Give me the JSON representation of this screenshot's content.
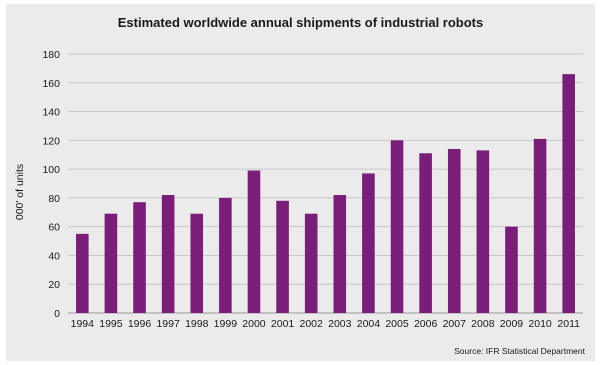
{
  "chart_data": {
    "type": "bar",
    "title": "Estimated worldwide annual shipments of industrial robots",
    "xlabel": "",
    "ylabel": "000' of units",
    "ylim": [
      0,
      180
    ],
    "yticks": [
      0,
      20,
      40,
      60,
      80,
      100,
      120,
      140,
      160,
      180
    ],
    "grid": true,
    "legend": "none",
    "bar_color": "#7b1e7a",
    "categories": [
      "1994",
      "1995",
      "1996",
      "1997",
      "1998",
      "1999",
      "2000",
      "2001",
      "2002",
      "2003",
      "2004",
      "2005",
      "2006",
      "2007",
      "2008",
      "2009",
      "2010",
      "2011"
    ],
    "values": [
      55,
      69,
      77,
      82,
      69,
      80,
      99,
      78,
      69,
      82,
      97,
      120,
      111,
      114,
      113,
      60,
      121,
      166
    ],
    "source": "Source: IFR Statistical Department"
  }
}
